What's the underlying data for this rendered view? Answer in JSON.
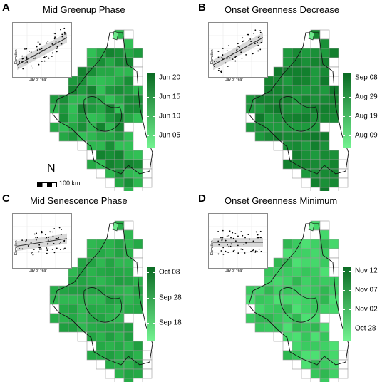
{
  "panels": [
    {
      "letter": "A",
      "title": "Mid Greenup Phase",
      "inset": {
        "xlabel": "Day of Year",
        "ylabel": "Elevation",
        "trend": "positive"
      },
      "legend": {
        "labels": [
          "Jun 20",
          "Jun 15",
          "Jun 10",
          "Jun 05"
        ],
        "color_top": "#0a6b23",
        "color_bottom": "#72f290"
      },
      "map_shade": "varied-mid"
    },
    {
      "letter": "B",
      "title": "Onset Greenness Decrease",
      "inset": {
        "xlabel": "Day of Year",
        "ylabel": "Elevation",
        "trend": "positive"
      },
      "legend": {
        "labels": [
          "Sep 08",
          "Aug 29",
          "Aug 19",
          "Aug 09"
        ],
        "color_top": "#0a6b23",
        "color_bottom": "#72f290"
      },
      "map_shade": "dark"
    },
    {
      "letter": "C",
      "title": "Mid Senescence Phase",
      "inset": {
        "xlabel": "Day of Year",
        "ylabel": "Elevation",
        "trend": "weak-positive"
      },
      "legend": {
        "labels": [
          "Oct 08",
          "Sep 28",
          "Sep 18"
        ],
        "color_top": "#0a6b23",
        "color_bottom": "#72f290"
      },
      "map_shade": "mid"
    },
    {
      "letter": "D",
      "title": "Onset Greenness Minimum",
      "inset": {
        "xlabel": "Day of Year",
        "ylabel": "Elevation",
        "trend": "flat"
      },
      "legend": {
        "labels": [
          "Nov 12",
          "Nov 07",
          "Nov 02",
          "Oct 28"
        ],
        "color_top": "#0a6b23",
        "color_bottom": "#72f290"
      },
      "map_shade": "light"
    }
  ],
  "scale": {
    "label": "100 km",
    "north_symbol": "N"
  }
}
